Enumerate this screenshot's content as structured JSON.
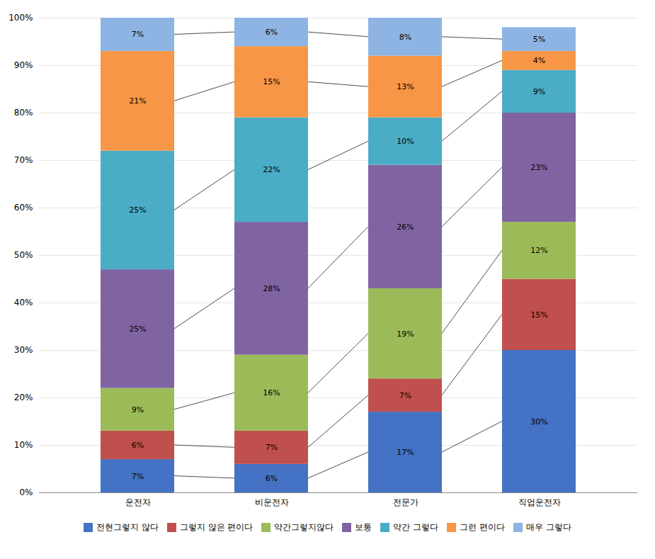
{
  "chart_data": {
    "type": "bar",
    "stacked": true,
    "categories": [
      "운전자",
      "비운전자",
      "전문가",
      "직업운전자"
    ],
    "series": [
      {
        "name": "전현그렇지 않다",
        "color": "#4472C4",
        "values": [
          7,
          6,
          17,
          30
        ],
        "value_labels": [
          "7%",
          "6%",
          "17%",
          "30%"
        ]
      },
      {
        "name": "그렇지 않은 편이다",
        "color": "#C0504D",
        "values": [
          6,
          7,
          7,
          15
        ],
        "value_labels": [
          "6%",
          "7%",
          "7%",
          "15%"
        ]
      },
      {
        "name": "약간그렇지않다",
        "color": "#9BBB59",
        "values": [
          9,
          16,
          19,
          12
        ],
        "value_labels": [
          "9%",
          "16%",
          "19%",
          "12%"
        ]
      },
      {
        "name": "보통",
        "color": "#8064A2",
        "values": [
          25,
          28,
          26,
          23
        ],
        "value_labels": [
          "25%",
          "28%",
          "26%",
          "23%"
        ]
      },
      {
        "name": "약간 그렇다",
        "color": "#4BACC6",
        "values": [
          25,
          22,
          10,
          9
        ],
        "value_labels": [
          "25%",
          "22%",
          "10%",
          "9%"
        ]
      },
      {
        "name": "그런 편이다",
        "color": "#F79646",
        "values": [
          21,
          15,
          13,
          4
        ],
        "value_labels": [
          "21%",
          "15%",
          "13%",
          "4%"
        ]
      },
      {
        "name": "매우 그렇다",
        "color": "#8DB4E2",
        "values": [
          7,
          6,
          8,
          5
        ],
        "value_labels": [
          "7%",
          "6%",
          "8%",
          "5%"
        ]
      }
    ],
    "ylim": [
      0,
      100
    ],
    "yticks": [
      {
        "value": 0,
        "label": "0%"
      },
      {
        "value": 10,
        "label": "10%"
      },
      {
        "value": 20,
        "label": "20%"
      },
      {
        "value": 30,
        "label": "30%"
      },
      {
        "value": 40,
        "label": "40%"
      },
      {
        "value": 50,
        "label": "50%"
      },
      {
        "value": 60,
        "label": "60%"
      },
      {
        "value": 70,
        "label": "70%"
      },
      {
        "value": 80,
        "label": "80%"
      },
      {
        "value": 90,
        "label": "90%"
      },
      {
        "value": 100,
        "label": "100%"
      }
    ],
    "grid": true,
    "legend": "bottom",
    "data_labels": true
  }
}
